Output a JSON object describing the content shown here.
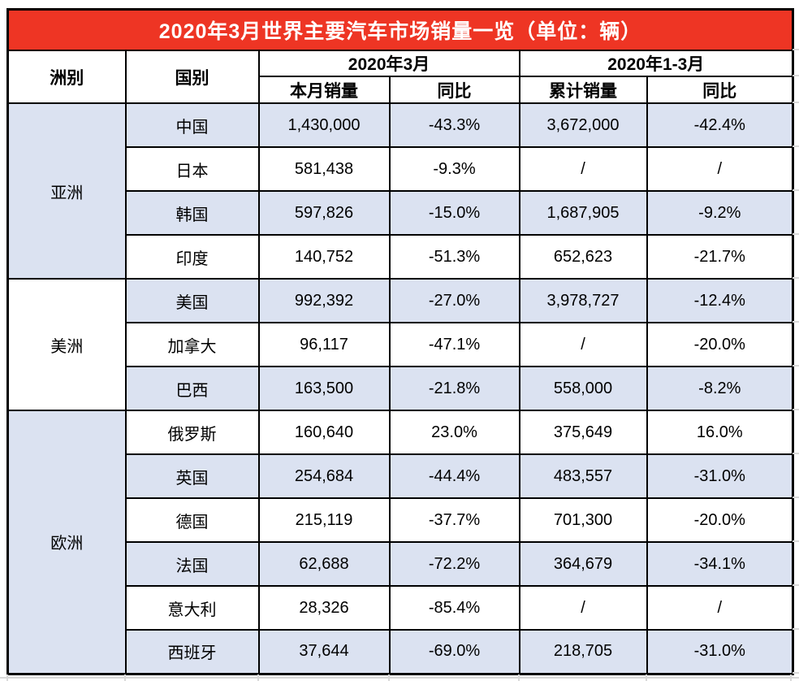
{
  "title": "2020年3月世界主要汽车市场销量一览（单位：辆）",
  "headers": {
    "continent": "洲别",
    "country": "国别",
    "march_group": "2020年3月",
    "q1_group": "2020年1-3月",
    "monthly_sales": "本月销量",
    "monthly_yoy": "同比",
    "cumulative_sales": "累计销量",
    "cumulative_yoy": "同比"
  },
  "groups": [
    {
      "continent": "亚洲",
      "rows": [
        {
          "country": "中国",
          "monthly_sales": "1,430,000",
          "monthly_yoy": "-43.3%",
          "cumulative_sales": "3,672,000",
          "cumulative_yoy": "-42.4%"
        },
        {
          "country": "日本",
          "monthly_sales": "581,438",
          "monthly_yoy": "-9.3%",
          "cumulative_sales": "/",
          "cumulative_yoy": "/"
        },
        {
          "country": "韩国",
          "monthly_sales": "597,826",
          "monthly_yoy": "-15.0%",
          "cumulative_sales": "1,687,905",
          "cumulative_yoy": "-9.2%"
        },
        {
          "country": "印度",
          "monthly_sales": "140,752",
          "monthly_yoy": "-51.3%",
          "cumulative_sales": "652,623",
          "cumulative_yoy": "-21.7%"
        }
      ]
    },
    {
      "continent": "美洲",
      "rows": [
        {
          "country": "美国",
          "monthly_sales": "992,392",
          "monthly_yoy": "-27.0%",
          "cumulative_sales": "3,978,727",
          "cumulative_yoy": "-12.4%"
        },
        {
          "country": "加拿大",
          "monthly_sales": "96,117",
          "monthly_yoy": "-47.1%",
          "cumulative_sales": "/",
          "cumulative_yoy": "-20.0%"
        },
        {
          "country": "巴西",
          "monthly_sales": "163,500",
          "monthly_yoy": "-21.8%",
          "cumulative_sales": "558,000",
          "cumulative_yoy": "-8.2%"
        }
      ]
    },
    {
      "continent": "欧洲",
      "rows": [
        {
          "country": "俄罗斯",
          "monthly_sales": "160,640",
          "monthly_yoy": "23.0%",
          "cumulative_sales": "375,649",
          "cumulative_yoy": "16.0%"
        },
        {
          "country": "英国",
          "monthly_sales": "254,684",
          "monthly_yoy": "-44.4%",
          "cumulative_sales": "483,557",
          "cumulative_yoy": "-31.0%"
        },
        {
          "country": "德国",
          "monthly_sales": "215,119",
          "monthly_yoy": "-37.7%",
          "cumulative_sales": "701,300",
          "cumulative_yoy": "-20.0%"
        },
        {
          "country": "法国",
          "monthly_sales": "62,688",
          "monthly_yoy": "-72.2%",
          "cumulative_sales": "364,679",
          "cumulative_yoy": "-34.1%"
        },
        {
          "country": "意大利",
          "monthly_sales": "28,326",
          "monthly_yoy": "-85.4%",
          "cumulative_sales": "/",
          "cumulative_yoy": "/"
        },
        {
          "country": "西班牙",
          "monthly_sales": "37,644",
          "monthly_yoy": "-69.0%",
          "cumulative_sales": "218,705",
          "cumulative_yoy": "-31.0%"
        }
      ]
    }
  ],
  "colors": {
    "title_bg": "#ee3524",
    "title_text": "#ffffff",
    "row_shaded": "#dbe2f1",
    "border": "#000000",
    "gridline": "#d9d9d9"
  }
}
